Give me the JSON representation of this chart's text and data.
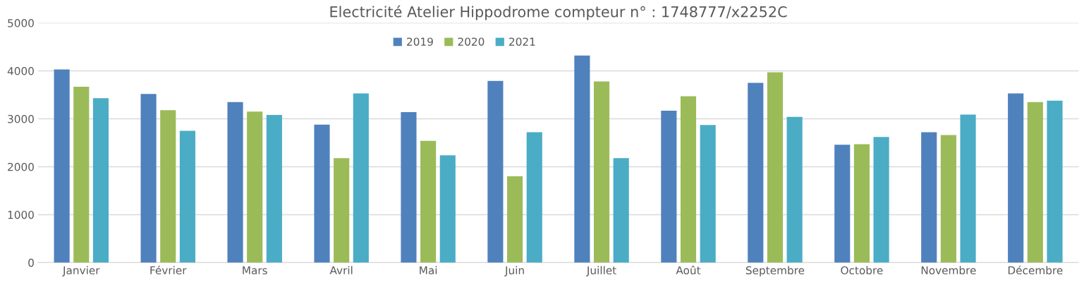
{
  "chart_data": {
    "type": "bar",
    "title": "Electricité Atelier Hippodrome compteur n° : 1748777/x2252C",
    "categories": [
      "Janvier",
      "Février",
      "Mars",
      "Avril",
      "Mai",
      "Juin",
      "Juillet",
      "Août",
      "Septembre",
      "Octobre",
      "Novembre",
      "Décembre"
    ],
    "series": [
      {
        "name": "2019",
        "color": "#4f81bd",
        "values": [
          4030,
          3520,
          3350,
          2880,
          3140,
          3790,
          4320,
          3170,
          3750,
          2460,
          2720,
          3530
        ]
      },
      {
        "name": "2020",
        "color": "#9bbb59",
        "values": [
          3670,
          3180,
          3150,
          2180,
          2540,
          1800,
          3780,
          3470,
          3970,
          2470,
          2660,
          3350
        ]
      },
      {
        "name": "2021",
        "color": "#4bacc6",
        "values": [
          3430,
          2750,
          3080,
          3530,
          2240,
          2720,
          2180,
          2870,
          3040,
          2620,
          3090,
          3380
        ]
      }
    ],
    "ylim": [
      0,
      5000
    ],
    "yticks": [
      0,
      1000,
      2000,
      3000,
      4000,
      5000
    ],
    "grid": "y",
    "legend": "top"
  }
}
